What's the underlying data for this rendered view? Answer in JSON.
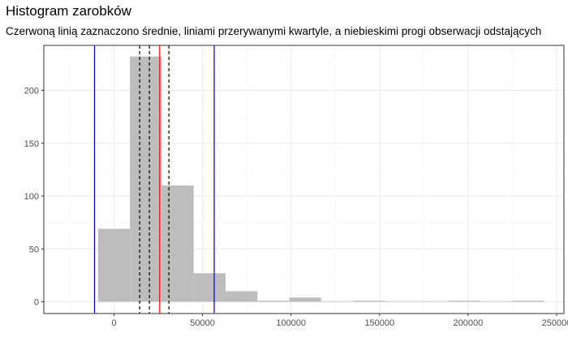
{
  "chart_data": {
    "type": "bar",
    "title": "Histogram zarobków",
    "subtitle": "Czerwoną linią zaznaczono średnie, liniami przerywanymi kwartyle, a niebieskimi progi obserwacji odstających",
    "xlabel": "",
    "ylabel": "",
    "xlim": [
      -40000,
      260000
    ],
    "ylim": [
      0,
      240
    ],
    "x_ticks": [
      0,
      50000,
      100000,
      150000,
      200000,
      250000
    ],
    "y_ticks": [
      0,
      50,
      100,
      150,
      200
    ],
    "grid": true,
    "bin_width": 18000,
    "bins": [
      {
        "start": -9000,
        "end": 9000,
        "count": 69
      },
      {
        "start": 9000,
        "end": 27000,
        "count": 232
      },
      {
        "start": 27000,
        "end": 45000,
        "count": 110
      },
      {
        "start": 45000,
        "end": 63000,
        "count": 27
      },
      {
        "start": 63000,
        "end": 81000,
        "count": 10
      },
      {
        "start": 81000,
        "end": 99000,
        "count": 1
      },
      {
        "start": 99000,
        "end": 117000,
        "count": 4
      },
      {
        "start": 117000,
        "end": 135000,
        "count": 0
      },
      {
        "start": 135000,
        "end": 153000,
        "count": 1
      },
      {
        "start": 153000,
        "end": 171000,
        "count": 0
      },
      {
        "start": 171000,
        "end": 189000,
        "count": 0
      },
      {
        "start": 189000,
        "end": 207000,
        "count": 1
      },
      {
        "start": 207000,
        "end": 225000,
        "count": 0
      },
      {
        "start": 225000,
        "end": 243000,
        "count": 1
      }
    ],
    "lines": {
      "mean": 25800,
      "quartiles": [
        14500,
        20000,
        31000
      ],
      "outlier_thresholds": [
        -11000,
        56600
      ]
    },
    "colors": {
      "bars": "#bdbdbd",
      "mean": "#ff0000",
      "quartiles": "#000000",
      "outlier_thresholds": "#0000cc",
      "grid_major": "#ebebeb",
      "grid_minor": "#f5f5f5"
    }
  }
}
